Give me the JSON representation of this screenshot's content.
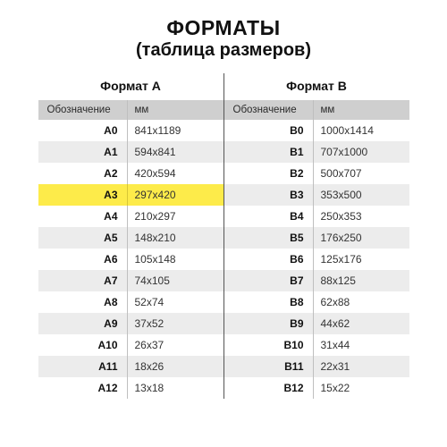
{
  "title": "ФОРМАТЫ",
  "subtitle": "(таблица размеров)",
  "columns": {
    "designation": "Обозначение",
    "mm": "мм"
  },
  "series": [
    {
      "name": "Формат A",
      "highlight_code": "A3",
      "rows": [
        {
          "code": "A0",
          "size": "841x1189"
        },
        {
          "code": "A1",
          "size": "594x841"
        },
        {
          "code": "A2",
          "size": "420x594"
        },
        {
          "code": "A3",
          "size": "297x420"
        },
        {
          "code": "A4",
          "size": "210x297"
        },
        {
          "code": "A5",
          "size": "148x210"
        },
        {
          "code": "A6",
          "size": "105x148"
        },
        {
          "code": "A7",
          "size": "74x105"
        },
        {
          "code": "A8",
          "size": "52x74"
        },
        {
          "code": "A9",
          "size": "37x52"
        },
        {
          "code": "A10",
          "size": "26x37"
        },
        {
          "code": "A11",
          "size": "18x26"
        },
        {
          "code": "A12",
          "size": "13x18"
        }
      ]
    },
    {
      "name": "Формат B",
      "highlight_code": null,
      "rows": [
        {
          "code": "B0",
          "size": "1000x1414"
        },
        {
          "code": "B1",
          "size": "707x1000"
        },
        {
          "code": "B2",
          "size": "500x707"
        },
        {
          "code": "B3",
          "size": "353x500"
        },
        {
          "code": "B4",
          "size": "250x353"
        },
        {
          "code": "B5",
          "size": "176x250"
        },
        {
          "code": "B6",
          "size": "125x176"
        },
        {
          "code": "B7",
          "size": "88x125"
        },
        {
          "code": "B8",
          "size": "62x88"
        },
        {
          "code": "B9",
          "size": "44x62"
        },
        {
          "code": "B10",
          "size": "31x44"
        },
        {
          "code": "B11",
          "size": "22x31"
        },
        {
          "code": "B12",
          "size": "15x22"
        }
      ]
    }
  ],
  "colors": {
    "background": "#ffffff",
    "text": "#111111",
    "header_row_bg": "#cfcfcf",
    "stripe_bg": "#ececec",
    "highlight_bg": "#fdeb4a",
    "divider": "#555555",
    "cell_border": "#bfbfbf"
  }
}
